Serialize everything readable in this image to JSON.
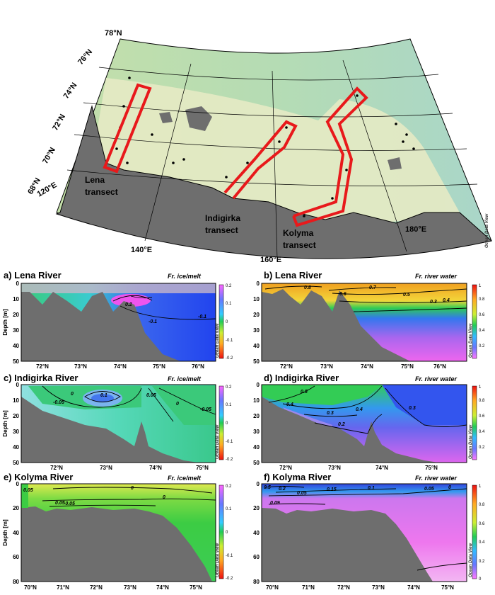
{
  "map": {
    "lat_labels": [
      "78°N",
      "76°N",
      "74°N",
      "72°N",
      "70°N",
      "68°N"
    ],
    "lon_labels": [
      "120°E",
      "140°E",
      "160°E",
      "180°E"
    ],
    "transects": [
      {
        "line1": "Lena",
        "line2": "transect"
      },
      {
        "line1": "Indigirka",
        "line2": "transect"
      },
      {
        "line1": "Kolyma",
        "line2": "transect"
      }
    ],
    "credit": "Ocean Data View",
    "colors": {
      "sea": "#b6dcb0",
      "shelf": "#e6eac4",
      "land": "#6e6e6e",
      "transect": "#e8191b"
    }
  },
  "panels": [
    {
      "id": "a",
      "title": "a) Lena River",
      "variable": "Fr. ice/melt",
      "yticks": [
        "0",
        "10",
        "20",
        "30",
        "40",
        "50"
      ],
      "xticks": [
        "72°N",
        "73°N",
        "74°N",
        "75°N",
        "76°N"
      ],
      "cbticks": [
        "0.2",
        "0.1",
        "0",
        "-0.1",
        "-0.2"
      ],
      "contours": [
        "0.2",
        "-0.1",
        "-0.1"
      ]
    },
    {
      "id": "b",
      "title": "b) Lena River",
      "variable": "Fr. river water",
      "yticks": [
        "0",
        "10",
        "20",
        "30",
        "40",
        "50"
      ],
      "xticks": [
        "72°N",
        "73°N",
        "74°N",
        "75°N",
        "76°N"
      ],
      "cbticks": [
        "1",
        "0.8",
        "0.6",
        "0.4",
        "0.2"
      ],
      "contours": [
        "0.8",
        "0.7",
        "0.6",
        "0.5",
        "0.4",
        "0.3"
      ]
    },
    {
      "id": "c",
      "title": "c) Indigirka River",
      "variable": "Fr. ice/melt",
      "yticks": [
        "0",
        "10",
        "20",
        "30",
        "40",
        "50"
      ],
      "xticks": [
        "72°N",
        "73°N",
        "74°N",
        "75°N"
      ],
      "cbticks": [
        "0.2",
        "0.1",
        "0",
        "-0.1",
        "-0.2"
      ],
      "contours": [
        "0",
        "-0.05",
        "0.1",
        "0.05",
        "0",
        "-0.05"
      ]
    },
    {
      "id": "d",
      "title": "d) Indigirka River",
      "variable": "Fr. river water",
      "yticks": [
        "0",
        "10",
        "20",
        "30",
        "40",
        "50"
      ],
      "xticks": [
        "72°N",
        "73°N",
        "74°N",
        "75°N"
      ],
      "cbticks": [
        "1",
        "0.8",
        "0.6",
        "0.4",
        "0.2"
      ],
      "contours": [
        "0.5",
        "0.4",
        "0.3",
        "0.4",
        "0.2",
        "0.3"
      ]
    },
    {
      "id": "e",
      "title": "e) Kolyma River",
      "variable": "Fr. ice/melt",
      "yticks": [
        "0",
        "20",
        "40",
        "60",
        "80"
      ],
      "xticks": [
        "70°N",
        "71°N",
        "72°N",
        "73°N",
        "74°N",
        "75°N"
      ],
      "cbticks": [
        "0.2",
        "0.1",
        "0",
        "-0.1",
        "-0.2"
      ],
      "contours": [
        "0.05",
        "0",
        "-0.05",
        "0.05",
        "0"
      ]
    },
    {
      "id": "f",
      "title": "f) Kolyma River",
      "variable": "Fr. river water",
      "yticks": [
        "0",
        "20",
        "40",
        "60",
        "80"
      ],
      "xticks": [
        "70°N",
        "71°N",
        "72°N",
        "73°N",
        "74°N",
        "75°N"
      ],
      "cbticks": [
        "1",
        "0.8",
        "0.6",
        "0.4",
        "0.2",
        "0"
      ],
      "contours": [
        "0.5",
        "0.2",
        "0.15",
        "0.1",
        "0.05",
        "0.05",
        "0.09",
        "0"
      ]
    }
  ],
  "ylabel": "Depth [m]",
  "odv_credit": "Ocean Data View"
}
